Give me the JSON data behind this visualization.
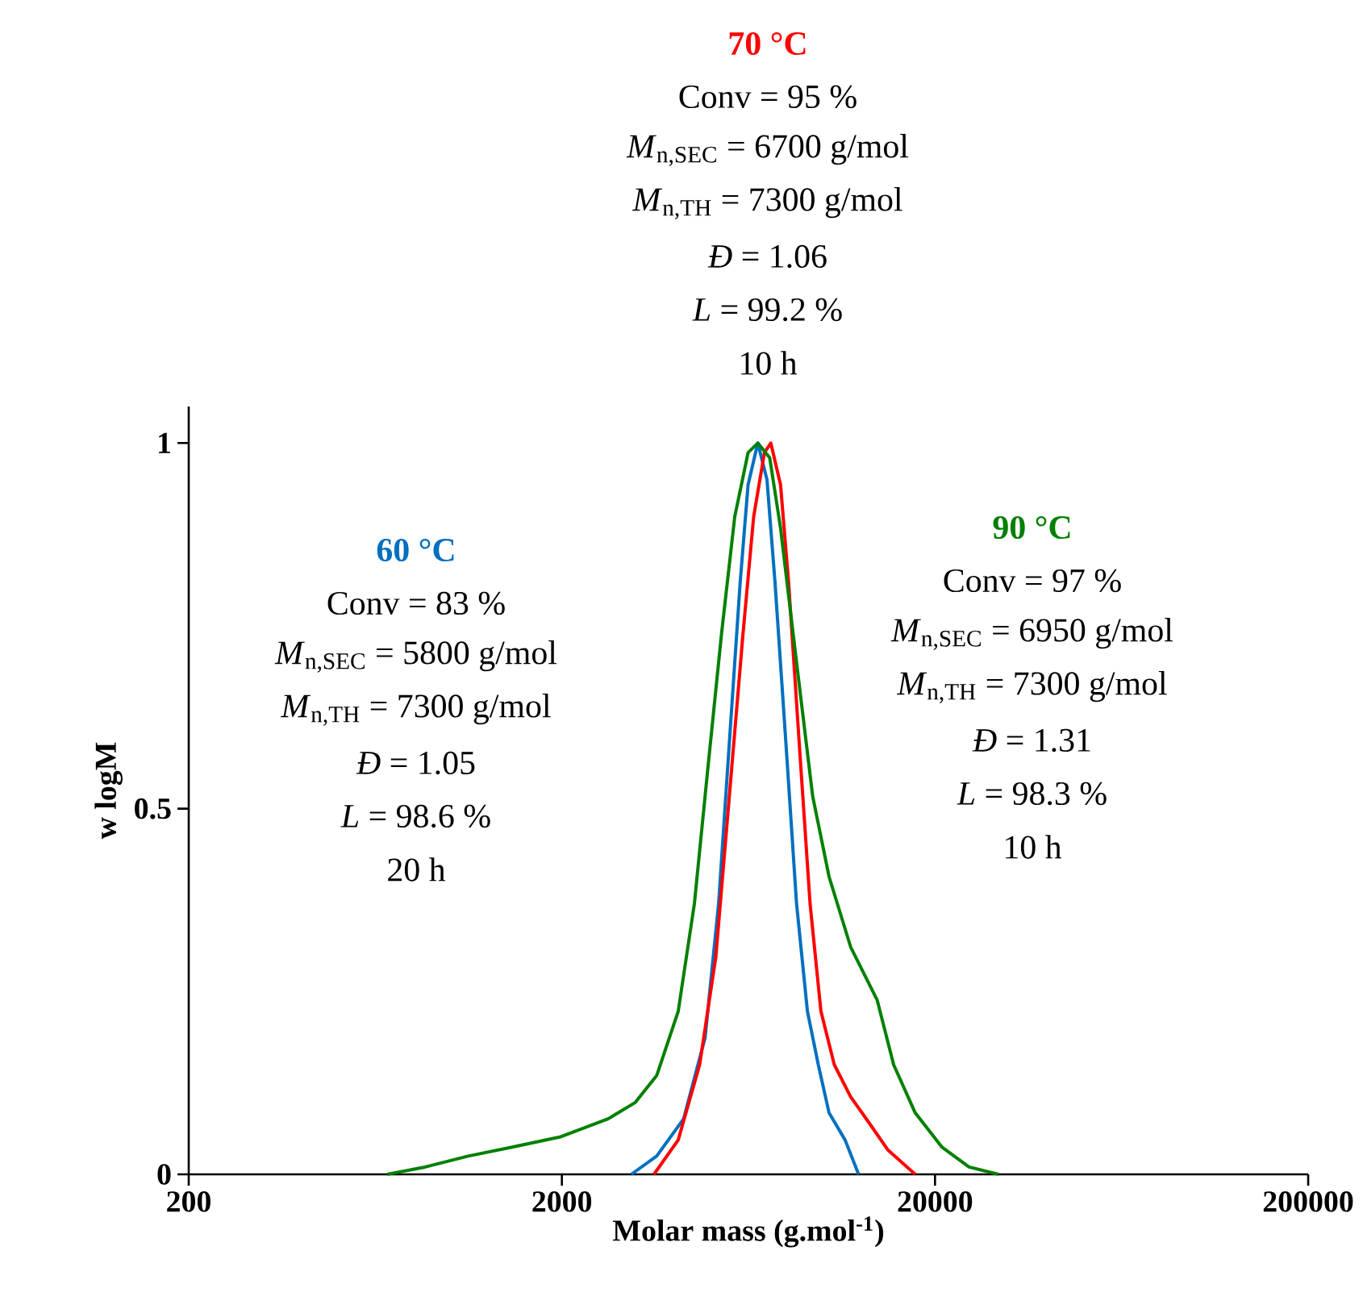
{
  "chart_data": {
    "type": "line",
    "xlabel": "**Molar mass (g.mol$^{-1}$)**",
    "ylabel": "**w logM**",
    "log": "x",
    "xlim": [
      200,
      200000
    ],
    "xticks": [
      200,
      2000,
      20000,
      200000
    ],
    "ylim": [
      0,
      1.05
    ],
    "yticks": [
      0,
      0.5,
      1
    ],
    "legend": false,
    "line_style": "solid",
    "series": [
      {
        "name": "60 °C",
        "color": "#0070c0",
        "x": [
          3070,
          3590,
          4240,
          4840,
          5260,
          5620,
          6010,
          6310,
          6700,
          7090,
          7450,
          7970,
          8510,
          9100,
          9730,
          10400,
          11480,
          12480
        ],
        "values": [
          0,
          0.025,
          0.076,
          0.187,
          0.37,
          0.59,
          0.81,
          0.943,
          1,
          0.95,
          0.81,
          0.59,
          0.37,
          0.223,
          0.15,
          0.084,
          0.047,
          0
        ]
      },
      {
        "name": "70 °C",
        "color": "#ff0000",
        "x": [
          3530,
          4100,
          4680,
          5170,
          5620,
          6110,
          6530,
          6980,
          7260,
          7710,
          8100,
          8650,
          9250,
          9890,
          10740,
          11880,
          13330,
          14970,
          17700
        ],
        "values": [
          0,
          0.047,
          0.15,
          0.297,
          0.517,
          0.737,
          0.899,
          0.987,
          1,
          0.943,
          0.81,
          0.59,
          0.37,
          0.223,
          0.15,
          0.106,
          0.07,
          0.033,
          0
        ]
      },
      {
        "name": "90 °C",
        "color": "#008000",
        "x": [
          681,
          860,
          1122,
          1463,
          1973,
          2662,
          3140,
          3590,
          4100,
          4530,
          4920,
          5350,
          5810,
          6310,
          6700,
          7210,
          7710,
          8510,
          9400,
          10400,
          11880,
          14000,
          15490,
          17700,
          20890,
          24660,
          29580
        ],
        "values": [
          0,
          0.01,
          0.025,
          0.037,
          0.051,
          0.076,
          0.098,
          0.135,
          0.223,
          0.37,
          0.554,
          0.737,
          0.899,
          0.987,
          1,
          0.98,
          0.884,
          0.7,
          0.517,
          0.407,
          0.311,
          0.238,
          0.15,
          0.084,
          0.037,
          0.01,
          0
        ]
      }
    ],
    "annotations": [
      "Conv = 83 %",
      "*M*$_{n,SEC}$ = 5800 g/mol",
      "*M*$_{n,TH}$ = 7300 g/mol",
      "*Đ* = 1.05",
      "*L* = 98.6 %",
      "20 h",
      "Conv = 95 %",
      "*M*$_{n,SEC}$ = 6700 g/mol",
      "*M*$_{n,TH}$ = 7300 g/mol",
      "*Đ* = 1.06",
      "*L* = 99.2 %",
      "10 h",
      "Conv = 97 %",
      "*M*$_{n,SEC}$ = 6950 g/mol",
      "*M*$_{n,TH}$ = 7300 g/mol",
      "*Đ* = 1.31",
      "*L* = 98.3 %",
      "10 h"
    ]
  }
}
